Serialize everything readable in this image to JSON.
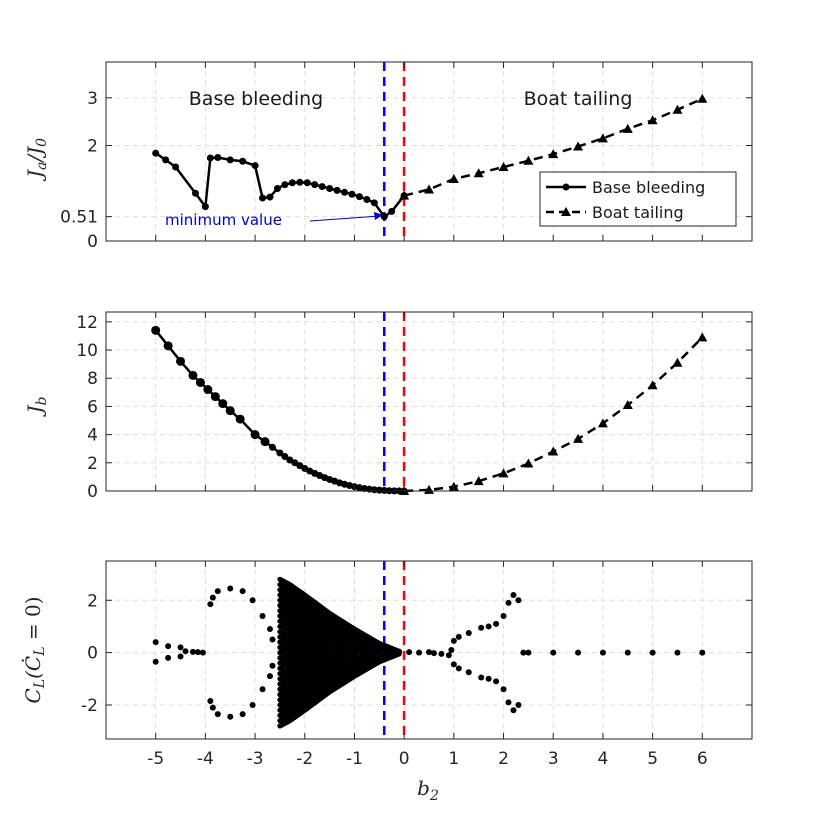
{
  "colors": {
    "series": "#000000",
    "grid": "#dddddd",
    "axes": "#262626",
    "blue_line": "#0000ff",
    "red_line": "#ff0000",
    "annotation": "#0000cc"
  },
  "x_axis": {
    "label": "b2",
    "ticks": [
      -5,
      -4,
      -3,
      -2,
      -1,
      0,
      1,
      2,
      3,
      4,
      5,
      6
    ],
    "range": [
      -6,
      7
    ]
  },
  "vertical_lines": [
    {
      "x": -0.4,
      "color": "blue",
      "style": "dashed"
    },
    {
      "x": 0,
      "color": "red",
      "style": "dashed"
    }
  ],
  "chart_data": [
    {
      "type": "line",
      "ylabel": "Ja/J0",
      "yticks": [
        0,
        0.51,
        2,
        3
      ],
      "ytick_labels": [
        "0",
        "0.51",
        "2",
        "3"
      ],
      "ylim": [
        0,
        3.75
      ],
      "grid": true,
      "region_labels": {
        "left": "Base bleeding",
        "right": "Boat tailing"
      },
      "legend": {
        "position": "right",
        "entries": [
          "Base bleeding",
          "Boat tailing"
        ]
      },
      "annotation": {
        "text": "minimum value",
        "x": -0.4,
        "y": 0.51
      },
      "series": [
        {
          "name": "Base bleeding",
          "style": "solid",
          "marker": "circle",
          "x": [
            -5,
            -4.8,
            -4.6,
            -4.2,
            -4,
            -3.9,
            -3.75,
            -3.5,
            -3.25,
            -3,
            -2.85,
            -2.7,
            -2.55,
            -2.4,
            -2.25,
            -2.1,
            -1.95,
            -1.8,
            -1.65,
            -1.5,
            -1.35,
            -1.2,
            -1.05,
            -0.9,
            -0.75,
            -0.6,
            -0.4,
            -0.25,
            0
          ],
          "y": [
            1.84,
            1.7,
            1.55,
            1.0,
            0.72,
            1.74,
            1.75,
            1.7,
            1.67,
            1.58,
            0.9,
            0.92,
            1.1,
            1.18,
            1.22,
            1.23,
            1.22,
            1.18,
            1.14,
            1.1,
            1.06,
            1.02,
            0.98,
            0.93,
            0.87,
            0.8,
            0.51,
            0.62,
            0.95
          ]
        },
        {
          "name": "Boat tailing",
          "style": "dashed",
          "marker": "triangle",
          "x": [
            0,
            0.5,
            1,
            1.5,
            2,
            2.5,
            3,
            3.5,
            4,
            4.5,
            5,
            5.5,
            6
          ],
          "y": [
            0.95,
            1.08,
            1.3,
            1.42,
            1.55,
            1.68,
            1.82,
            1.98,
            2.15,
            2.35,
            2.53,
            2.75,
            2.98
          ]
        }
      ]
    },
    {
      "type": "line",
      "ylabel": "Jb",
      "yticks": [
        0,
        2,
        4,
        6,
        8,
        10,
        12
      ],
      "ylim": [
        0,
        12.7
      ],
      "grid": true,
      "series": [
        {
          "name": "Base bleeding",
          "style": "solid",
          "marker": "circle",
          "x": [
            -5,
            -4.75,
            -4.5,
            -4.25,
            -4.1,
            -3.95,
            -3.8,
            -3.65,
            -3.5,
            -3.3,
            -3.0,
            -2.8,
            -2.65,
            -2.5,
            -2.4,
            -2.3,
            -2.2,
            -2.1,
            -2.0,
            -1.9,
            -1.8,
            -1.7,
            -1.6,
            -1.5,
            -1.4,
            -1.3,
            -1.2,
            -1.1,
            -1.0,
            -0.9,
            -0.8,
            -0.7,
            -0.6,
            -0.5,
            -0.4,
            -0.3,
            -0.2,
            -0.1,
            0
          ],
          "y": [
            11.4,
            10.3,
            9.2,
            8.2,
            7.7,
            7.2,
            6.7,
            6.2,
            5.7,
            5.1,
            4.0,
            3.5,
            3.1,
            2.7,
            2.45,
            2.2,
            2.0,
            1.8,
            1.6,
            1.42,
            1.25,
            1.1,
            0.95,
            0.82,
            0.7,
            0.58,
            0.48,
            0.39,
            0.31,
            0.24,
            0.18,
            0.13,
            0.09,
            0.06,
            0.04,
            0.02,
            0.01,
            0.005,
            0
          ]
        },
        {
          "name": "Boat tailing",
          "style": "dashed",
          "marker": "triangle",
          "x": [
            0,
            0.5,
            1,
            1.5,
            2,
            2.5,
            3,
            3.5,
            4,
            4.5,
            5,
            5.5,
            6
          ],
          "y": [
            0,
            0.08,
            0.3,
            0.7,
            1.25,
            1.95,
            2.8,
            3.7,
            4.8,
            6.1,
            7.5,
            9.1,
            10.9
          ]
        }
      ]
    },
    {
      "type": "scatter",
      "ylabel": "CL(ĊL=0)",
      "yticks": [
        -2,
        0,
        2
      ],
      "ylim": [
        -3.3,
        3.5
      ],
      "grid": true,
      "points": [
        [
          -5,
          0.4
        ],
        [
          -5,
          -0.35
        ],
        [
          -4.75,
          0.25
        ],
        [
          -4.75,
          -0.2
        ],
        [
          -4.5,
          0.2
        ],
        [
          -4.5,
          -0.15
        ],
        [
          -4.4,
          0.05
        ],
        [
          -4.25,
          0.03
        ],
        [
          -4.15,
          0.02
        ],
        [
          -4.05,
          0.0
        ],
        [
          -3.9,
          1.85
        ],
        [
          -3.9,
          -1.85
        ],
        [
          -3.85,
          2.1
        ],
        [
          -3.85,
          -2.1
        ],
        [
          -3.75,
          2.35
        ],
        [
          -3.75,
          -2.35
        ],
        [
          -3.5,
          2.45
        ],
        [
          -3.5,
          -2.45
        ],
        [
          -3.25,
          2.35
        ],
        [
          -3.25,
          -2.35
        ],
        [
          -3.05,
          2.0
        ],
        [
          -3.05,
          -2.0
        ],
        [
          -2.85,
          1.4
        ],
        [
          -2.85,
          -1.4
        ],
        [
          -2.7,
          0.9
        ],
        [
          -2.7,
          -0.9
        ],
        [
          -2.65,
          0.5
        ],
        [
          -2.65,
          -0.5
        ],
        [
          -0.35,
          0.08
        ],
        [
          -0.2,
          0.05
        ],
        [
          -0.1,
          0.03
        ],
        [
          0.1,
          0.02
        ],
        [
          0.3,
          0.0
        ],
        [
          0.5,
          0.02
        ],
        [
          0.6,
          -0.02
        ],
        [
          0.75,
          -0.05
        ],
        [
          0.9,
          -0.1
        ],
        [
          0.95,
          0.1
        ],
        [
          1.0,
          0.45
        ],
        [
          1.0,
          -0.45
        ],
        [
          1.1,
          0.6
        ],
        [
          1.1,
          -0.6
        ],
        [
          1.3,
          0.75
        ],
        [
          1.3,
          -0.75
        ],
        [
          1.55,
          0.95
        ],
        [
          1.55,
          -0.95
        ],
        [
          1.7,
          1.0
        ],
        [
          1.7,
          -1.0
        ],
        [
          1.85,
          1.1
        ],
        [
          1.85,
          -1.1
        ],
        [
          2.0,
          1.4
        ],
        [
          2.0,
          -1.4
        ],
        [
          2.1,
          1.9
        ],
        [
          2.1,
          -1.9
        ],
        [
          2.2,
          2.2
        ],
        [
          2.2,
          -2.2
        ],
        [
          2.3,
          2.0
        ],
        [
          2.3,
          -2.0
        ],
        [
          2.4,
          0.0
        ],
        [
          2.5,
          0.0
        ],
        [
          3.0,
          0.0
        ],
        [
          3.5,
          0.0
        ],
        [
          4.0,
          0.0
        ],
        [
          4.5,
          0.0
        ],
        [
          5.0,
          0.0
        ],
        [
          5.5,
          0.0
        ],
        [
          6.0,
          0.0
        ]
      ],
      "dense_band": {
        "x_range": [
          -2.5,
          -0.1
        ],
        "spread_edges": [
          [
            -2.5,
            2.8
          ],
          [
            -2.3,
            2.6
          ],
          [
            -2.0,
            2.2
          ],
          [
            -1.5,
            1.5
          ],
          [
            -1.0,
            0.9
          ],
          [
            -0.5,
            0.35
          ],
          [
            -0.1,
            0.05
          ]
        ]
      }
    }
  ]
}
